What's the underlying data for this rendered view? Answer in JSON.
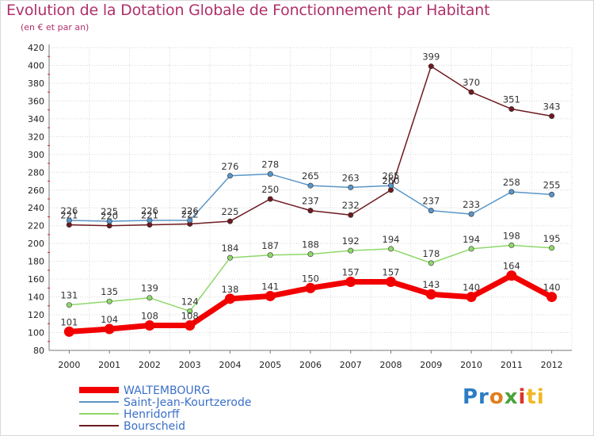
{
  "chart_data": {
    "type": "line",
    "title": "Evolution de la Dotation Globale de Fonctionnement par Habitant",
    "subtitle": "(en € et par an)",
    "categories": [
      "2000",
      "2001",
      "2002",
      "2003",
      "2004",
      "2005",
      "2006",
      "2007",
      "2008",
      "2009",
      "2010",
      "2011",
      "2012"
    ],
    "ylim": [
      80,
      420
    ],
    "yticks": [
      80,
      100,
      120,
      140,
      160,
      180,
      200,
      220,
      240,
      260,
      280,
      300,
      320,
      340,
      360,
      380,
      400,
      420
    ],
    "grid": true,
    "legend_position": "bottom-left",
    "series": [
      {
        "name": "Bourscheid",
        "color": "#6e1a20",
        "values": [
          221,
          220,
          221,
          222,
          225,
          250,
          237,
          232,
          260,
          399,
          370,
          351,
          343
        ]
      },
      {
        "name": "Saint-Jean-Kourtzerode",
        "color": "#5a95c8",
        "values": [
          226,
          225,
          226,
          226,
          276,
          278,
          265,
          263,
          265,
          237,
          233,
          258,
          255
        ]
      },
      {
        "name": "Henridorff",
        "color": "#8fd86a",
        "values": [
          131,
          135,
          139,
          124,
          184,
          187,
          188,
          192,
          194,
          178,
          194,
          198,
          195
        ]
      },
      {
        "name": "WALTEMBOURG",
        "color": "#f20000",
        "values": [
          101,
          104,
          108,
          108,
          138,
          141,
          150,
          157,
          157,
          143,
          140,
          164,
          140
        ]
      }
    ],
    "legend": [
      {
        "name": "WALTEMBOURG",
        "color": "#f20000",
        "thick": true
      },
      {
        "name": "Saint-Jean-Kourtzerode",
        "color": "#5a95c8",
        "thick": false
      },
      {
        "name": "Henridorff",
        "color": "#8fd86a",
        "thick": false
      },
      {
        "name": "Bourscheid",
        "color": "#6e1a20",
        "thick": false
      }
    ]
  },
  "logo": {
    "letters": [
      "Pr",
      "o",
      "x",
      "i",
      "ti"
    ]
  }
}
